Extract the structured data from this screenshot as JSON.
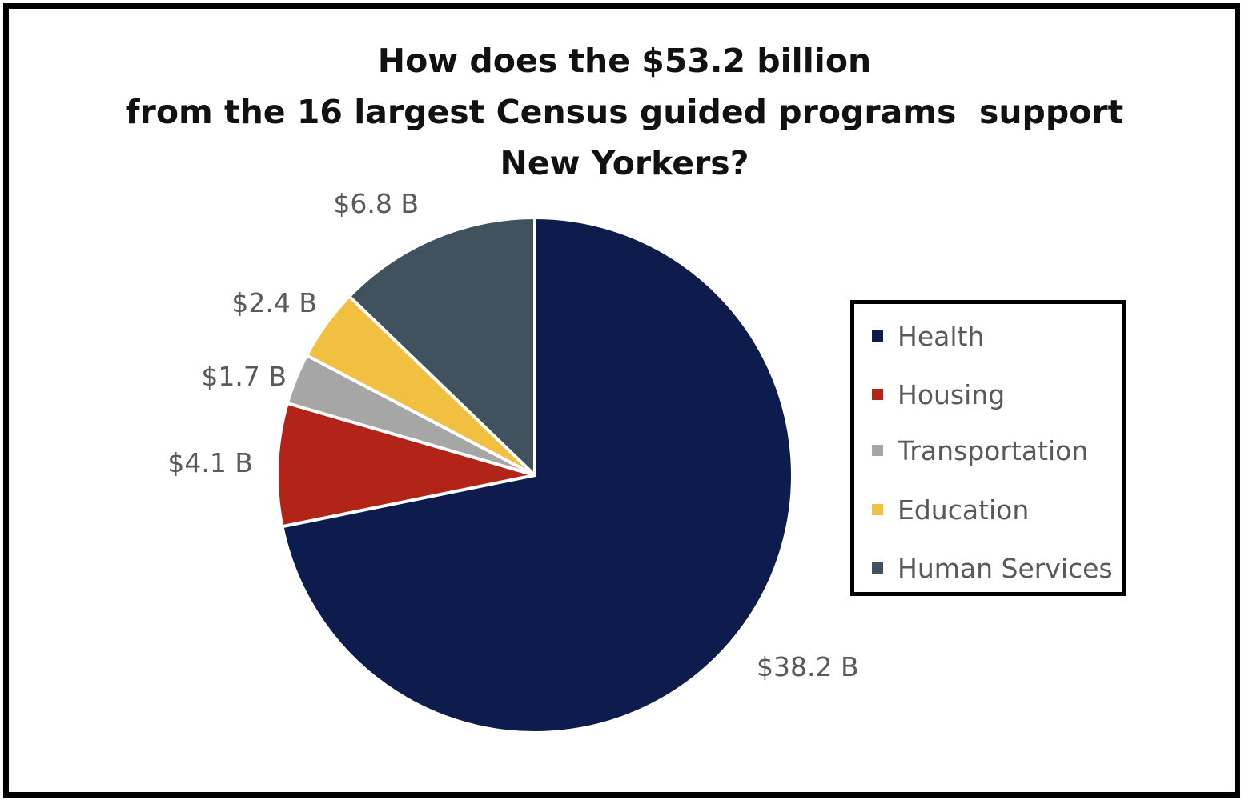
{
  "title_lines": [
    "How does the $53.2 billion",
    "from the 16 largest Census guided programs  support",
    "New Yorkers?"
  ],
  "chart_data": {
    "type": "pie",
    "title": "How does the $53.2 billion from the 16 largest Census guided programs  support New Yorkers?",
    "categories": [
      "Health",
      "Housing",
      "Transportation",
      "Education",
      "Human Services"
    ],
    "values": [
      38.2,
      4.1,
      1.7,
      2.4,
      6.8
    ],
    "unit": "billion USD",
    "data_labels": [
      "$38.2 B",
      "$4.1 B",
      "$1.7 B",
      "$2.4 B",
      "$6.8 B"
    ],
    "colors": [
      "#0e1c4d",
      "#b22418",
      "#a6a6a6",
      "#f2c040",
      "#3f525d"
    ],
    "legend_position": "right",
    "start_angle": "12 o'clock, clockwise"
  },
  "legend": {
    "items": [
      {
        "label": "Health",
        "color": "#0e1c4d"
      },
      {
        "label": "Housing",
        "color": "#b22418"
      },
      {
        "label": "Transportation",
        "color": "#a6a6a6"
      },
      {
        "label": "Education",
        "color": "#f2c040"
      },
      {
        "label": "Human Services",
        "color": "#3f525d"
      }
    ]
  }
}
